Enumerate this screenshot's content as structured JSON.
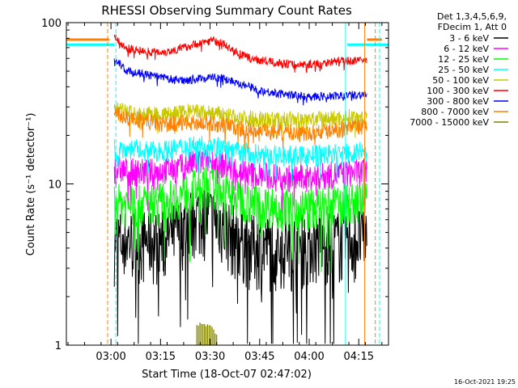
{
  "chart_data": {
    "type": "line",
    "title": "RHESSI Observing Summary Count Rates",
    "xlabel": "Start Time (18-Oct-07 02:47:02)",
    "ylabel": "Count Rate (s⁻¹ detector⁻¹)",
    "yscale": "log",
    "ylim": [
      1,
      100
    ],
    "xlim_minutes": [
      -0.5,
      97
    ],
    "x_ticks": [
      {
        "label": "03:00",
        "min": 13
      },
      {
        "label": "03:15",
        "min": 28
      },
      {
        "label": "03:30",
        "min": 43
      },
      {
        "label": "03:45",
        "min": 58
      },
      {
        "label": "04:00",
        "min": 73
      },
      {
        "label": "04:15",
        "min": 88
      }
    ],
    "y_ticks": [
      {
        "label": "1",
        "value": 1
      },
      {
        "label": "10",
        "value": 10
      },
      {
        "label": "100",
        "value": 100
      }
    ],
    "legend_header": [
      "Det 1,3,4,5,6,9,",
      "FDecim 1, Att 0"
    ],
    "grid": false,
    "legend_placement": "right",
    "data_start_min": 14,
    "data_end_min": 90.5,
    "series": [
      {
        "name": "3 - 6 keV",
        "color": "#000000",
        "noise": 0.5,
        "points": [
          [
            14,
            4.6
          ],
          [
            22,
            4.6
          ],
          [
            28,
            4.5
          ],
          [
            33,
            5.2
          ],
          [
            38,
            6.5
          ],
          [
            42,
            6.5
          ],
          [
            46,
            6.0
          ],
          [
            50,
            5.0
          ],
          [
            55,
            4.3
          ],
          [
            65,
            4.2
          ],
          [
            75,
            4.5
          ],
          [
            84,
            4.6
          ],
          [
            90,
            4.8
          ]
        ]
      },
      {
        "name": "6 - 12 keV",
        "color": "#ff00ff",
        "noise": 0.2,
        "points": [
          [
            14,
            12.5
          ],
          [
            20,
            12.0
          ],
          [
            26,
            12.0
          ],
          [
            32,
            12.5
          ],
          [
            38,
            13.5
          ],
          [
            42,
            14.0
          ],
          [
            46,
            13.5
          ],
          [
            50,
            12.5
          ],
          [
            56,
            11.5
          ],
          [
            65,
            11.0
          ],
          [
            72,
            11.0
          ],
          [
            80,
            11.5
          ],
          [
            90,
            12.0
          ]
        ]
      },
      {
        "name": "12 - 25 keV",
        "color": "#00ff00",
        "noise": 0.3,
        "points": [
          [
            14,
            7.8
          ],
          [
            20,
            7.5
          ],
          [
            26,
            7.8
          ],
          [
            32,
            8.2
          ],
          [
            38,
            9.5
          ],
          [
            42,
            10.0
          ],
          [
            46,
            9.5
          ],
          [
            50,
            8.5
          ],
          [
            56,
            7.8
          ],
          [
            65,
            7.2
          ],
          [
            72,
            7.2
          ],
          [
            80,
            7.5
          ],
          [
            90,
            8.0
          ]
        ]
      },
      {
        "name": "25 - 50 keV",
        "color": "#00ffff",
        "noise": 0.15,
        "points": [
          [
            14,
            16.5
          ],
          [
            20,
            16.5
          ],
          [
            26,
            16.0
          ],
          [
            32,
            16.5
          ],
          [
            38,
            17.5
          ],
          [
            42,
            17.5
          ],
          [
            46,
            17.0
          ],
          [
            50,
            16.0
          ],
          [
            56,
            15.5
          ],
          [
            65,
            15.0
          ],
          [
            72,
            15.0
          ],
          [
            80,
            15.5
          ],
          [
            90,
            16.0
          ]
        ]
      },
      {
        "name": "50 - 100 keV",
        "color": "#c8c800",
        "noise": 0.12,
        "points": [
          [
            14,
            29
          ],
          [
            18,
            28
          ],
          [
            22,
            27
          ],
          [
            26,
            27
          ],
          [
            30,
            27
          ],
          [
            35,
            28
          ],
          [
            40,
            28
          ],
          [
            46,
            27
          ],
          [
            50,
            26
          ],
          [
            56,
            25.5
          ],
          [
            65,
            25
          ],
          [
            72,
            25
          ],
          [
            80,
            25.5
          ],
          [
            90,
            26.5
          ]
        ]
      },
      {
        "name": "100 - 300 keV",
        "color": "#ff0000",
        "noise": 0.06,
        "points": [
          [
            14,
            84
          ],
          [
            17,
            70
          ],
          [
            20,
            68
          ],
          [
            25,
            66
          ],
          [
            30,
            66
          ],
          [
            35,
            70
          ],
          [
            40,
            75
          ],
          [
            44,
            78
          ],
          [
            47,
            74
          ],
          [
            50,
            67
          ],
          [
            55,
            60
          ],
          [
            62,
            57
          ],
          [
            68,
            55
          ],
          [
            72,
            55
          ],
          [
            76,
            56
          ],
          [
            82,
            58
          ],
          [
            90,
            58
          ]
        ]
      },
      {
        "name": "300 - 800 keV",
        "color": "#0000ff",
        "noise": 0.06,
        "points": [
          [
            14,
            62
          ],
          [
            17,
            51
          ],
          [
            20,
            49
          ],
          [
            25,
            47
          ],
          [
            30,
            45
          ],
          [
            35,
            44
          ],
          [
            40,
            45
          ],
          [
            44,
            46
          ],
          [
            47,
            45
          ],
          [
            52,
            42
          ],
          [
            58,
            38
          ],
          [
            65,
            36
          ],
          [
            72,
            35
          ],
          [
            80,
            35
          ],
          [
            90,
            36
          ]
        ]
      },
      {
        "name": "800 - 7000 keV",
        "color": "#ff8000",
        "noise": 0.12,
        "points": [
          [
            14,
            27
          ],
          [
            18,
            26
          ],
          [
            22,
            25
          ],
          [
            26,
            24
          ],
          [
            30,
            23.5
          ],
          [
            35,
            24
          ],
          [
            40,
            24
          ],
          [
            46,
            23.5
          ],
          [
            50,
            22.5
          ],
          [
            56,
            21.5
          ],
          [
            65,
            21
          ],
          [
            72,
            20.5
          ],
          [
            80,
            21.5
          ],
          [
            90,
            23
          ]
        ]
      },
      {
        "name": "7000 - 15000 keV",
        "color": "#808000",
        "noise": 0.0,
        "points": [
          [
            39,
            1.3
          ],
          [
            41,
            1.4
          ],
          [
            43,
            1.3
          ],
          [
            45,
            1.2
          ]
        ]
      }
    ],
    "indicator_lines": [
      {
        "color": "#ff8000",
        "dashed": false,
        "segments": [
          [
            [
              -0.5,
              78.5
            ],
            [
              12.5,
              78.5
            ]
          ],
          [
            [
              90.5,
              78.5
            ],
            [
              95,
              78.5
            ]
          ]
        ]
      },
      {
        "color": "#00ffff",
        "dashed": false,
        "segments": [
          [
            [
              -0.5,
              73
            ],
            [
              14.0,
              73
            ]
          ],
          [
            [
              84.5,
              73
            ],
            [
              97,
              73
            ]
          ]
        ]
      }
    ],
    "vertical_markers": [
      {
        "color": "#ff8000",
        "dashed": true,
        "min": 12.0
      },
      {
        "color": "#00ffff",
        "dashed": true,
        "min": 14.5
      },
      {
        "color": "#00ffff",
        "dashed": false,
        "min": 84.0
      },
      {
        "color": "#ff8000",
        "dashed": false,
        "min": 89.8
      },
      {
        "color": "#ff8000",
        "dashed": true,
        "min": 93.0
      },
      {
        "color": "#00ffff",
        "dashed": true,
        "min": 94.3
      }
    ],
    "timestamp": "16-Oct-2021 19:25"
  }
}
